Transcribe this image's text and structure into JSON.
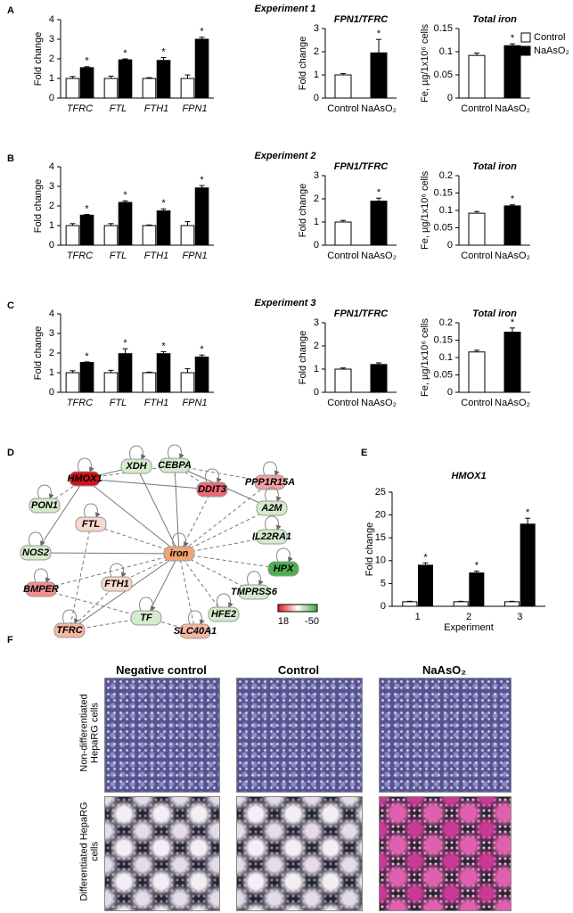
{
  "panels": [
    {
      "label": "A",
      "title": "Experiment 1"
    },
    {
      "label": "B",
      "title": "Experiment 2"
    },
    {
      "label": "C",
      "title": "Experiment 3"
    },
    {
      "label": "D"
    },
    {
      "label": "E"
    },
    {
      "label": "F"
    }
  ],
  "legend": [
    {
      "name": "Control",
      "color": "#ffffff"
    },
    {
      "name": "NaAsO₂",
      "color": "#000000"
    }
  ],
  "chart_data": [
    {
      "type": "bar",
      "ylabel": "Fold change",
      "categories": [
        "TFRC",
        "FTL",
        "FTH1",
        "FPN1"
      ],
      "ylim": [
        0,
        4
      ],
      "yticks": [
        0,
        1,
        2,
        3,
        4
      ],
      "series": [
        {
          "name": "Control",
          "color": "#ffffff",
          "values": [
            1,
            1,
            1,
            1
          ],
          "errors": [
            0.1,
            0.12,
            0.04,
            0.18
          ]
        },
        {
          "name": "NaAsO₂",
          "color": "#000000",
          "values": [
            1.55,
            1.95,
            1.92,
            3.0
          ],
          "errors": [
            0.05,
            0.05,
            0.15,
            0.1
          ],
          "stars": [
            "*",
            "*",
            "*",
            "*"
          ]
        }
      ]
    },
    {
      "type": "bar",
      "title": "FPN1/TFRC",
      "ylabel": "Fold change",
      "categories": [
        "Control",
        "NaAsO₂"
      ],
      "values": [
        1,
        1.95
      ],
      "errors": [
        0.06,
        0.58
      ],
      "stars": [
        null,
        "*"
      ],
      "colors": [
        "#ffffff",
        "#000000"
      ],
      "ylim": [
        0,
        3
      ],
      "yticks": [
        0,
        1,
        2,
        3
      ]
    },
    {
      "type": "bar",
      "title": "Total iron",
      "ylabel": "Fe, µg/1x10⁶ cells",
      "categories": [
        "Control",
        "NaAsO₂"
      ],
      "values": [
        0.092,
        0.113
      ],
      "errors": [
        0.005,
        0.004
      ],
      "stars": [
        null,
        "*"
      ],
      "colors": [
        "#ffffff",
        "#000000"
      ],
      "ylim": [
        0,
        0.15
      ],
      "yticks": [
        0,
        0.05,
        0.1,
        0.15
      ]
    },
    {
      "type": "bar",
      "ylabel": "Fold change",
      "categories": [
        "TFRC",
        "FTL",
        "FTH1",
        "FPN1"
      ],
      "ylim": [
        0,
        4
      ],
      "yticks": [
        0,
        1,
        2,
        3,
        4
      ],
      "series": [
        {
          "name": "Control",
          "color": "#ffffff",
          "values": [
            1,
            1,
            1,
            1
          ],
          "errors": [
            0.1,
            0.1,
            0.03,
            0.2
          ]
        },
        {
          "name": "NaAsO₂",
          "color": "#000000",
          "values": [
            1.53,
            2.18,
            1.75,
            2.92
          ],
          "errors": [
            0.04,
            0.08,
            0.1,
            0.12
          ],
          "stars": [
            "*",
            "*",
            "*",
            "*"
          ]
        }
      ]
    },
    {
      "type": "bar",
      "title": "FPN1/TFRC",
      "ylabel": "Fold change",
      "categories": [
        "Control",
        "NaAsO₂"
      ],
      "values": [
        1,
        1.9
      ],
      "errors": [
        0.07,
        0.13
      ],
      "stars": [
        null,
        "*"
      ],
      "colors": [
        "#ffffff",
        "#000000"
      ],
      "ylim": [
        0,
        3
      ],
      "yticks": [
        0,
        1,
        2,
        3
      ]
    },
    {
      "type": "bar",
      "title": "Total iron",
      "ylabel": "Fe, µg/1x10⁶ cells",
      "categories": [
        "Control",
        "NaAsO₂"
      ],
      "values": [
        0.092,
        0.113
      ],
      "errors": [
        0.005,
        0.003
      ],
      "stars": [
        null,
        "*"
      ],
      "colors": [
        "#ffffff",
        "#000000"
      ],
      "ylim": [
        0,
        0.2
      ],
      "yticks": [
        0,
        0.05,
        0.1,
        0.15,
        0.2
      ]
    },
    {
      "type": "bar",
      "ylabel": "Fold change",
      "categories": [
        "TFRC",
        "FTL",
        "FTH1",
        "FPN1"
      ],
      "ylim": [
        0,
        4
      ],
      "yticks": [
        0,
        1,
        2,
        3,
        4
      ],
      "series": [
        {
          "name": "Control",
          "color": "#ffffff",
          "values": [
            1,
            1,
            1,
            1
          ],
          "errors": [
            0.1,
            0.12,
            0.03,
            0.2
          ]
        },
        {
          "name": "NaAsO₂",
          "color": "#000000",
          "values": [
            1.52,
            1.97,
            1.97,
            1.8
          ],
          "errors": [
            0.03,
            0.25,
            0.1,
            0.1
          ],
          "stars": [
            "*",
            "*",
            "*",
            "*"
          ]
        }
      ]
    },
    {
      "type": "bar",
      "title": "FPN1/TFRC",
      "ylabel": "Fold change",
      "categories": [
        "Control",
        "NaAsO₂"
      ],
      "values": [
        1,
        1.2
      ],
      "errors": [
        0.05,
        0.07
      ],
      "colors": [
        "#ffffff",
        "#000000"
      ],
      "ylim": [
        0,
        3
      ],
      "yticks": [
        0,
        1,
        2,
        3
      ]
    },
    {
      "type": "bar",
      "title": "Total iron",
      "ylabel": "Fe, µg/1x10⁶ cells",
      "categories": [
        "Control",
        "NaAsO₂"
      ],
      "values": [
        0.116,
        0.173
      ],
      "errors": [
        0.005,
        0.012
      ],
      "stars": [
        null,
        "*"
      ],
      "colors": [
        "#ffffff",
        "#000000"
      ],
      "ylim": [
        0,
        0.2
      ],
      "yticks": [
        0,
        0.05,
        0.1,
        0.15,
        0.2
      ]
    },
    {
      "type": "bar",
      "title": "HMOX1",
      "ylabel": "Fold change",
      "xlabel": "Experiment",
      "categories": [
        "1",
        "2",
        "3"
      ],
      "ylim": [
        0,
        25
      ],
      "yticks": [
        0,
        5,
        10,
        15,
        20,
        25
      ],
      "series": [
        {
          "name": "Control",
          "color": "#ffffff",
          "values": [
            1,
            1,
            1
          ],
          "errors": [
            0.1,
            0.1,
            0.1
          ]
        },
        {
          "name": "NaAsO₂",
          "color": "#000000",
          "values": [
            9,
            7.3,
            18
          ],
          "errors": [
            0.5,
            0.4,
            1.3
          ],
          "stars": [
            "*",
            "*",
            "*"
          ]
        }
      ]
    }
  ],
  "network": {
    "nodes": [
      {
        "label": "HMOX1",
        "color": "#d0141a"
      },
      {
        "label": "XDH",
        "color": "#d4ebcc"
      },
      {
        "label": "CEBPA",
        "color": "#d4ebcc"
      },
      {
        "label": "PPP1R15A",
        "color": "#f2a0a0"
      },
      {
        "label": "DDIT3",
        "color": "#ea6b73"
      },
      {
        "label": "PON1",
        "color": "#d4ebcc"
      },
      {
        "label": "FTL",
        "color": "#f8d8cc"
      },
      {
        "label": "A2M",
        "color": "#d4ebcc"
      },
      {
        "label": "NOS2",
        "color": "#d4ebcc"
      },
      {
        "label": "iron",
        "color": "#f4a470"
      },
      {
        "label": "IL22RA1",
        "color": "#d4ebcc"
      },
      {
        "label": "HPX",
        "color": "#4caf50"
      },
      {
        "label": "BMPER",
        "color": "#f09090"
      },
      {
        "label": "FTH1",
        "color": "#f8d8cc"
      },
      {
        "label": "TMPRSS6",
        "color": "#d4ebcc"
      },
      {
        "label": "TFRC",
        "color": "#f6b6a0"
      },
      {
        "label": "TF",
        "color": "#d4ebcc"
      },
      {
        "label": "SLC40A1",
        "color": "#f6b6a0"
      },
      {
        "label": "HFE2",
        "color": "#d4ebcc"
      }
    ],
    "color_scale": {
      "high": 18,
      "low": -50,
      "high_color": "#e8141c",
      "low_color": "#3aa83a"
    }
  },
  "micrographs": {
    "columns": [
      "Negative control",
      "Control",
      "NaAsO₂"
    ],
    "rows": [
      "Non-differentiated HepaRG cells",
      "Differentiated HepaRG cells"
    ]
  }
}
